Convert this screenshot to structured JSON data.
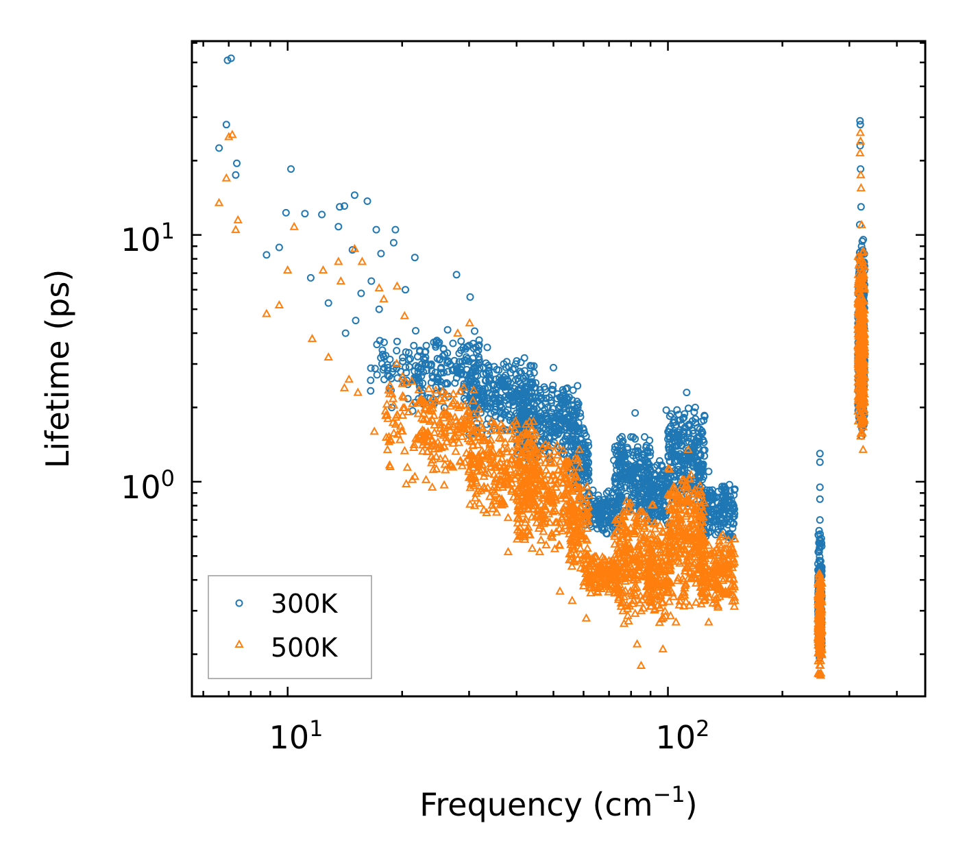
{
  "chart_data": {
    "type": "scatter",
    "title": "",
    "xlabel": "Frequency (cm",
    "xlabel_sup": "−1",
    "xlabel_tail": ")",
    "ylabel": "Lifetime (ps)",
    "xscale": "log",
    "yscale": "log",
    "xlim": [
      5.6,
      475
    ],
    "ylim": [
      0.135,
      61
    ],
    "x_ticks": [
      {
        "value": 10,
        "base": "10",
        "exp": "1"
      },
      {
        "value": 100,
        "base": "10",
        "exp": "2"
      }
    ],
    "y_ticks": [
      {
        "value": 1,
        "base": "10",
        "exp": "0"
      },
      {
        "value": 10,
        "base": "10",
        "exp": "1"
      }
    ],
    "legend_position": "lower-left",
    "series": [
      {
        "name": "300K",
        "marker": "circle",
        "color": "#1f77b4",
        "points": [
          [
            6.6,
            22.5
          ],
          [
            6.9,
            28.0
          ],
          [
            6.95,
            51.0
          ],
          [
            7.1,
            52.0
          ],
          [
            7.3,
            17.5
          ],
          [
            7.35,
            19.5
          ],
          [
            8.8,
            8.3
          ],
          [
            9.5,
            8.9
          ],
          [
            9.9,
            12.3
          ],
          [
            10.2,
            18.5
          ],
          [
            11.1,
            12.2
          ],
          [
            11.5,
            6.7
          ],
          [
            12.3,
            12.1
          ],
          [
            12.8,
            5.3
          ],
          [
            13.6,
            10.8
          ],
          [
            13.7,
            13.0
          ],
          [
            14.1,
            13.1
          ],
          [
            14.2,
            4.0
          ],
          [
            14.8,
            8.7
          ],
          [
            15.0,
            14.5
          ],
          [
            15.1,
            4.5
          ],
          [
            15.6,
            5.8
          ],
          [
            16.2,
            13.7
          ],
          [
            16.6,
            6.5
          ],
          [
            17.1,
            10.5
          ],
          [
            17.4,
            5.0
          ],
          [
            17.6,
            8.4
          ],
          [
            19.0,
            9.3
          ],
          [
            19.2,
            10.5
          ],
          [
            20.4,
            6.0
          ],
          [
            21.6,
            8.1
          ],
          [
            27.8,
            6.9
          ],
          [
            30.2,
            5.6
          ],
          [
            33.5,
            3.5
          ],
          [
            37.0,
            3.0
          ],
          [
            39.8,
            3.0
          ],
          [
            44.5,
            2.4
          ],
          [
            50.0,
            2.9
          ],
          [
            52.0,
            2.2
          ],
          [
            55.0,
            2.2
          ],
          [
            57.0,
            1.7
          ],
          [
            59.0,
            1.5
          ],
          [
            82.0,
            1.9
          ],
          [
            99.0,
            1.95
          ],
          [
            112.0,
            2.3
          ],
          [
            118.0,
            2.0
          ],
          [
            128.0,
            1.1
          ],
          [
            148.0,
            0.6
          ],
          [
            251.0,
            1.3
          ],
          [
            251.0,
            1.2
          ],
          [
            251.0,
            0.95
          ],
          [
            251.0,
            0.85
          ],
          [
            251.0,
            0.7
          ],
          [
            320.0,
            29.0
          ],
          [
            320.5,
            28.0
          ],
          [
            320.2,
            23.0
          ],
          [
            321.0,
            18.5
          ],
          [
            322.0,
            13.0
          ],
          [
            319.5,
            11.0
          ],
          [
            323.0,
            9.0
          ],
          [
            324.0,
            5.5
          ],
          [
            324.5,
            3.0
          ]
        ],
        "clusters": [
          {
            "x": [
              16.5,
              23.0
            ],
            "y": [
              1.8,
              4.5
            ],
            "n": 70
          },
          {
            "x": [
              22.0,
              32.0
            ],
            "y": [
              1.9,
              4.2
            ],
            "n": 160
          },
          {
            "x": [
              30.0,
              45.0
            ],
            "y": [
              1.5,
              3.3
            ],
            "n": 260
          },
          {
            "x": [
              40.0,
              59.0
            ],
            "y": [
              1.2,
              2.6
            ],
            "n": 300
          },
          {
            "x": [
              55.0,
              62.0
            ],
            "y": [
              0.8,
              1.7
            ],
            "n": 90
          },
          {
            "x": [
              60.0,
              75.0
            ],
            "y": [
              0.6,
              0.95
            ],
            "n": 150
          },
          {
            "x": [
              72.0,
              90.0
            ],
            "y": [
              0.7,
              1.6
            ],
            "n": 220
          },
          {
            "x": [
              88.0,
              100.0
            ],
            "y": [
              0.65,
              1.25
            ],
            "n": 130
          },
          {
            "x": [
              100.0,
              125.0
            ],
            "y": [
              0.75,
              2.1
            ],
            "n": 260
          },
          {
            "x": [
              122.0,
              150.0
            ],
            "y": [
              0.55,
              1.05
            ],
            "n": 170
          },
          {
            "x": [
              248.0,
              254.0
            ],
            "y": [
              0.18,
              0.65
            ],
            "n": 160
          },
          {
            "x": [
              316.0,
              329.0
            ],
            "y": [
              1.5,
              10.0
            ],
            "n": 360
          }
        ]
      },
      {
        "name": "500K",
        "marker": "triangle",
        "color": "#ff7f0e",
        "points": [
          [
            6.6,
            13.5
          ],
          [
            6.9,
            17.0
          ],
          [
            7.0,
            25.0
          ],
          [
            7.15,
            25.5
          ],
          [
            7.3,
            10.5
          ],
          [
            7.4,
            11.5
          ],
          [
            8.8,
            4.8
          ],
          [
            9.5,
            5.2
          ],
          [
            10.0,
            7.2
          ],
          [
            10.4,
            10.8
          ],
          [
            11.6,
            3.8
          ],
          [
            12.4,
            7.2
          ],
          [
            12.8,
            3.2
          ],
          [
            13.6,
            7.8
          ],
          [
            13.8,
            6.5
          ],
          [
            14.1,
            2.4
          ],
          [
            14.5,
            2.6
          ],
          [
            15.0,
            8.8
          ],
          [
            15.3,
            2.3
          ],
          [
            15.7,
            7.8
          ],
          [
            16.9,
            1.6
          ],
          [
            17.4,
            6.1
          ],
          [
            17.9,
            5.5
          ],
          [
            18.6,
            1.15
          ],
          [
            19.4,
            6.2
          ],
          [
            20.3,
            4.7
          ],
          [
            20.5,
            0.98
          ],
          [
            21.6,
            1.05
          ],
          [
            24.0,
            0.95
          ],
          [
            25.8,
            0.97
          ],
          [
            28.0,
            4.0
          ],
          [
            30.1,
            4.4
          ],
          [
            38.0,
            0.52
          ],
          [
            46.0,
            0.52
          ],
          [
            52.0,
            0.36
          ],
          [
            56.0,
            0.33
          ],
          [
            61.0,
            0.28
          ],
          [
            83.0,
            0.22
          ],
          [
            85.0,
            0.18
          ],
          [
            97.0,
            0.21
          ],
          [
            105.0,
            0.27
          ],
          [
            113.0,
            1.35
          ],
          [
            128.0,
            0.27
          ],
          [
            150.0,
            0.33
          ],
          [
            320.5,
            26.0
          ],
          [
            321.0,
            24.0
          ],
          [
            320.0,
            21.5
          ],
          [
            321.5,
            17.5
          ],
          [
            322.0,
            15.5
          ],
          [
            323.0,
            11.0
          ],
          [
            324.5,
            8.5
          ],
          [
            326.0,
            1.35
          ]
        ],
        "clusters": [
          {
            "x": [
              18.0,
              23.0
            ],
            "y": [
              1.0,
              3.2
            ],
            "n": 60
          },
          {
            "x": [
              22.0,
              32.0
            ],
            "y": [
              0.95,
              2.6
            ],
            "n": 160
          },
          {
            "x": [
              30.0,
              45.0
            ],
            "y": [
              0.7,
              1.9
            ],
            "n": 260
          },
          {
            "x": [
              40.0,
              59.0
            ],
            "y": [
              0.5,
              1.55
            ],
            "n": 300
          },
          {
            "x": [
              55.0,
              62.0
            ],
            "y": [
              0.38,
              1.05
            ],
            "n": 90
          },
          {
            "x": [
              60.0,
              75.0
            ],
            "y": [
              0.34,
              0.52
            ],
            "n": 150
          },
          {
            "x": [
              72.0,
              92.0
            ],
            "y": [
              0.25,
              0.9
            ],
            "n": 240
          },
          {
            "x": [
              88.0,
              102.0
            ],
            "y": [
              0.25,
              0.75
            ],
            "n": 150
          },
          {
            "x": [
              100.0,
              125.0
            ],
            "y": [
              0.3,
              1.25
            ],
            "n": 280
          },
          {
            "x": [
              122.0,
              150.0
            ],
            "y": [
              0.3,
              0.62
            ],
            "n": 180
          },
          {
            "x": [
              248.0,
              254.0
            ],
            "y": [
              0.16,
              0.45
            ],
            "n": 170
          },
          {
            "x": [
              316.0,
              329.0
            ],
            "y": [
              1.45,
              9.0
            ],
            "n": 360
          }
        ]
      }
    ]
  }
}
